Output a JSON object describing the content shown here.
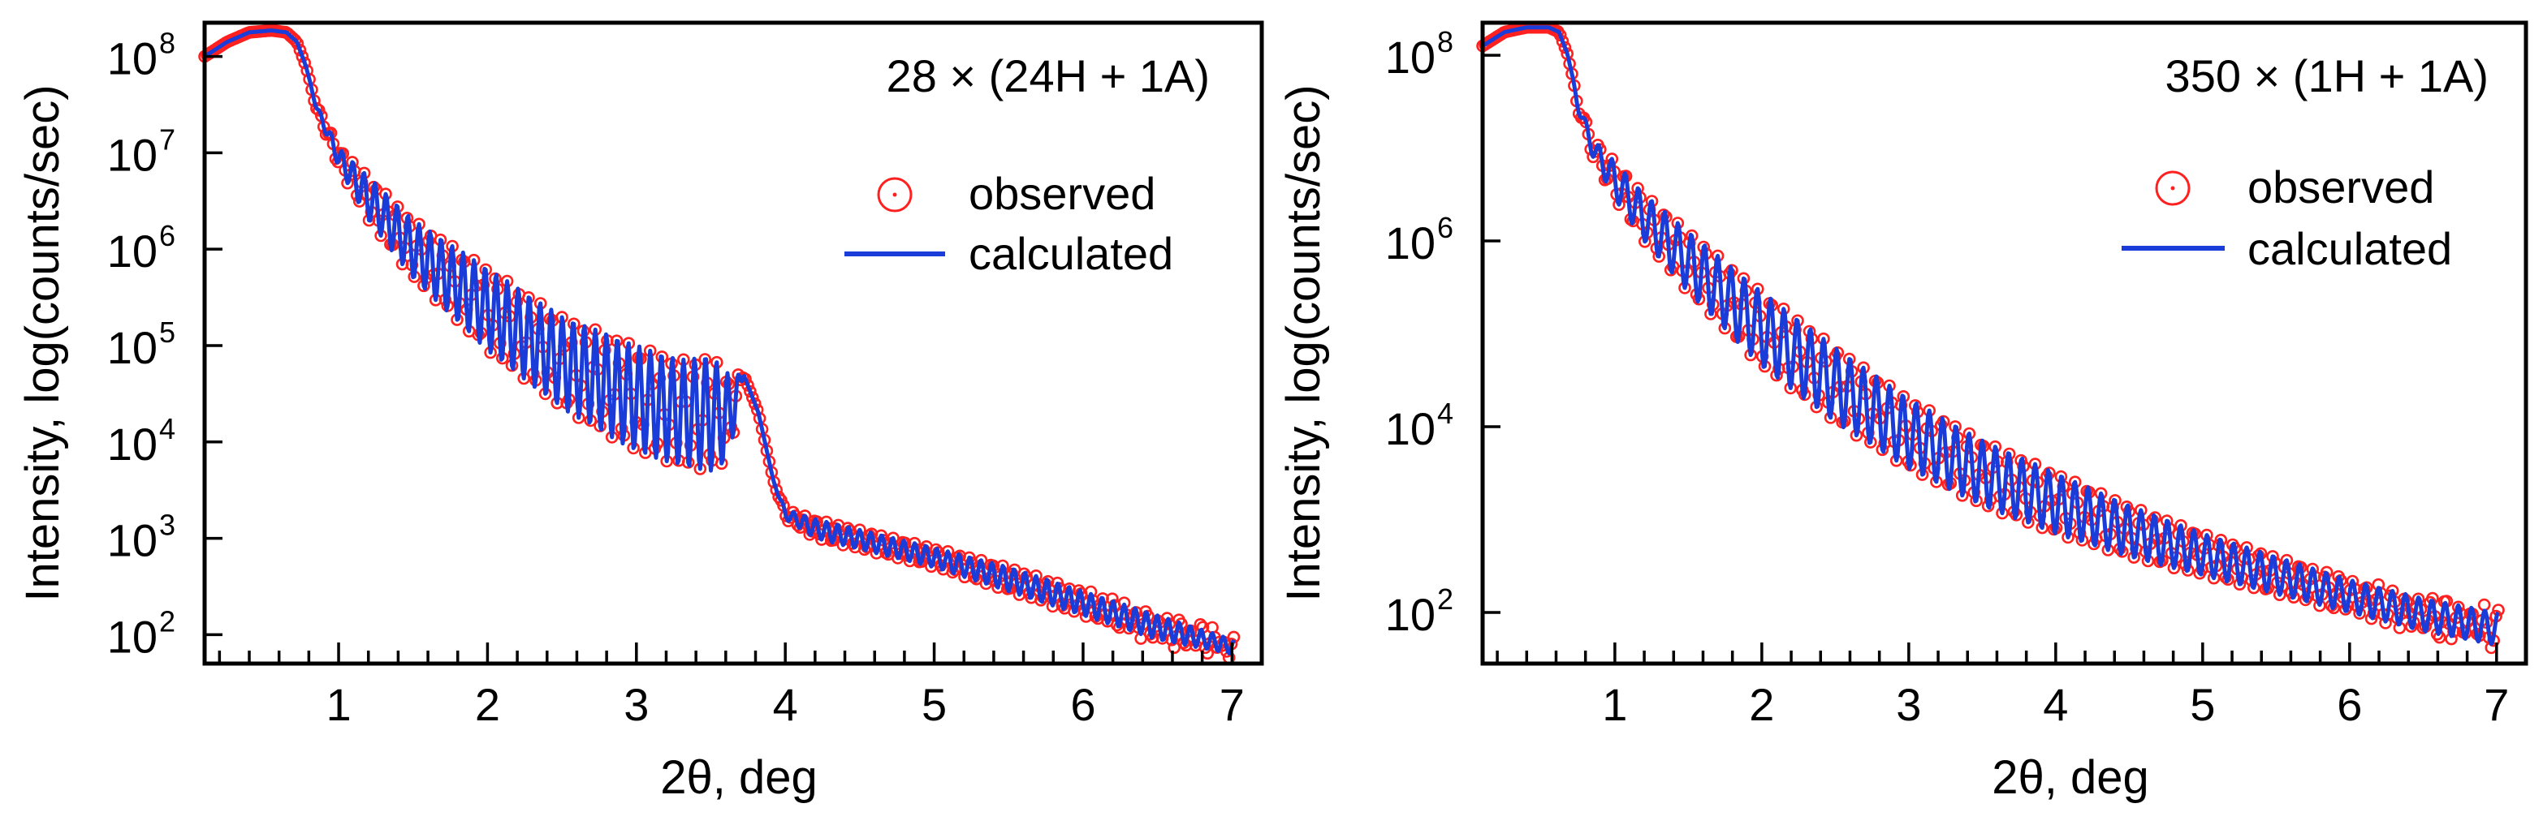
{
  "chart_data": [
    {
      "type": "scatter",
      "title": "28 × (24H + 1A)",
      "xlabel": "2θ, deg",
      "ylabel": "Intensity, log(counts/sec)",
      "xlim": [
        0.1,
        7.2
      ],
      "ylim_log10": [
        1.7,
        8.35
      ],
      "yscale": "log",
      "xticks": [
        "1",
        "2",
        "3",
        "4",
        "5",
        "6",
        "7"
      ],
      "yticks": [
        {
          "base": "10",
          "exp": "8"
        },
        {
          "base": "10",
          "exp": "7"
        },
        {
          "base": "10",
          "exp": "6"
        },
        {
          "base": "10",
          "exp": "5"
        },
        {
          "base": "10",
          "exp": "4"
        },
        {
          "base": "10",
          "exp": "3"
        },
        {
          "base": "10",
          "exp": "2"
        }
      ],
      "legend": {
        "position": "top-right",
        "observed": "observed",
        "calculated": "calculated"
      },
      "series": [
        {
          "name": "observed",
          "marker": "open-circle",
          "color": "#ff2020"
        },
        {
          "name": "calculated",
          "marker": "line",
          "color": "#1a3cd8"
        }
      ],
      "envelope": {
        "x": [
          0.1,
          0.25,
          0.4,
          0.55,
          0.65,
          0.72,
          0.78,
          0.85,
          1.0,
          1.2,
          1.5,
          2.0,
          2.5,
          3.0,
          3.3,
          3.5,
          3.62,
          3.72,
          3.82,
          3.92,
          4.0,
          4.2,
          4.6,
          5.0,
          5.5,
          6.0,
          6.5,
          7.0
        ],
        "upper_log10": [
          8.0,
          8.15,
          8.25,
          8.27,
          8.25,
          8.15,
          7.9,
          7.5,
          7.05,
          6.75,
          6.3,
          5.8,
          5.3,
          5.0,
          4.85,
          4.9,
          4.7,
          4.7,
          4.3,
          3.6,
          3.3,
          3.2,
          3.05,
          2.9,
          2.7,
          2.45,
          2.2,
          1.95
        ],
        "lower_log10": [
          8.0,
          8.15,
          8.25,
          8.27,
          8.25,
          8.15,
          7.9,
          7.45,
          6.85,
          6.3,
          5.7,
          4.95,
          4.35,
          3.9,
          3.75,
          3.7,
          3.8,
          4.7,
          4.3,
          3.6,
          3.2,
          3.0,
          2.85,
          2.7,
          2.45,
          2.2,
          1.95,
          1.8
        ]
      },
      "fringe_period_deg": 0.074
    },
    {
      "type": "scatter",
      "title": "350 × (1H + 1A)",
      "xlabel": "2θ, deg",
      "ylabel": "Intensity, log(counts/sec)",
      "xlim": [
        0.1,
        7.2
      ],
      "ylim_log10": [
        1.45,
        8.35
      ],
      "yscale": "log",
      "xticks": [
        "1",
        "2",
        "3",
        "4",
        "5",
        "6",
        "7"
      ],
      "yticks": [
        {
          "base": "10",
          "exp": "8"
        },
        {
          "base": "10",
          "exp": "6"
        },
        {
          "base": "10",
          "exp": "4"
        },
        {
          "base": "10",
          "exp": "2"
        }
      ],
      "legend": {
        "position": "top-right",
        "observed": "observed",
        "calculated": "calculated"
      },
      "series": [
        {
          "name": "observed",
          "marker": "open-circle",
          "color": "#ff2020"
        },
        {
          "name": "calculated",
          "marker": "line",
          "color": "#1a3cd8"
        }
      ],
      "envelope": {
        "x": [
          0.1,
          0.25,
          0.4,
          0.55,
          0.62,
          0.68,
          0.75,
          0.85,
          1.0,
          1.2,
          1.5,
          2.0,
          2.5,
          3.0,
          3.5,
          4.0,
          4.5,
          5.0,
          5.5,
          6.0,
          6.5,
          7.0
        ],
        "upper_log10": [
          8.1,
          8.25,
          8.3,
          8.3,
          8.25,
          8.0,
          7.5,
          7.1,
          6.85,
          6.5,
          6.1,
          5.45,
          4.85,
          4.3,
          3.85,
          3.5,
          3.15,
          2.85,
          2.6,
          2.35,
          2.15,
          2.0
        ],
        "lower_log10": [
          8.1,
          8.25,
          8.3,
          8.3,
          8.25,
          8.0,
          7.4,
          6.9,
          6.45,
          6.0,
          5.45,
          4.65,
          4.05,
          3.55,
          3.15,
          2.85,
          2.6,
          2.4,
          2.2,
          2.0,
          1.8,
          1.65
        ]
      },
      "fringe_period_deg": 0.09
    }
  ]
}
